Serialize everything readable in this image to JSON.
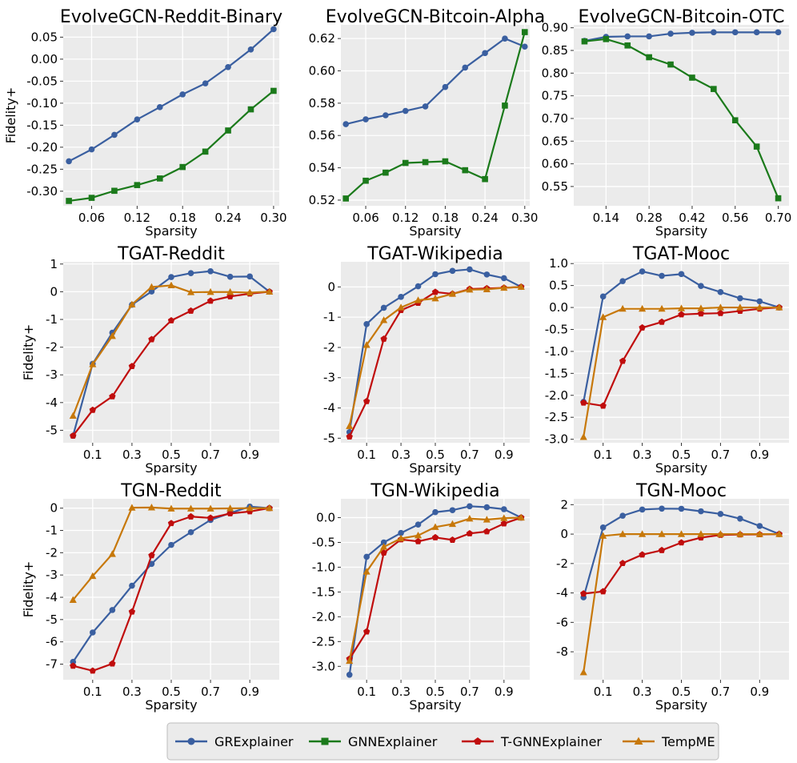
{
  "legend": [
    {
      "name": "GRExplainer",
      "color": "#3a5fa0",
      "marker": "circle"
    },
    {
      "name": "GNNExplainer",
      "color": "#1b7a1b",
      "marker": "square"
    },
    {
      "name": "T-GNNExplainer",
      "color": "#c00d0d",
      "marker": "pentagon"
    },
    {
      "name": "TempME",
      "color": "#c7780a",
      "marker": "triangle"
    }
  ],
  "ylabel": "Fidelity+",
  "xlabel": "Sparsity",
  "chart_data": [
    {
      "type": "line",
      "title": "EvolveGCN-Reddit-Binary",
      "xlabel": "Sparsity",
      "ylabel": "Fidelity+",
      "xlim": [
        0.0225,
        0.3075
      ],
      "ylim": [
        -0.333,
        0.078
      ],
      "xticks": [
        0.06,
        0.12,
        0.18,
        0.24,
        0.3
      ],
      "xtick_labels": [
        "0.06",
        "0.12",
        "0.18",
        "0.24",
        "0.30"
      ],
      "yticks": [
        -0.3,
        -0.25,
        -0.2,
        -0.15,
        -0.1,
        -0.05,
        0.0,
        0.05
      ],
      "ytick_labels": [
        "-0.30",
        "-0.25",
        "-0.20",
        "-0.15",
        "-0.10",
        "-0.05",
        "0.00",
        "0.05"
      ],
      "x": [
        0.03,
        0.06,
        0.09,
        0.12,
        0.15,
        0.18,
        0.21,
        0.24,
        0.27,
        0.3
      ],
      "series": [
        {
          "name": "GRExplainer",
          "values": [
            -0.232,
            -0.205,
            -0.172,
            -0.137,
            -0.109,
            -0.08,
            -0.055,
            -0.018,
            0.022,
            0.068
          ]
        },
        {
          "name": "GNNExplainer",
          "values": [
            -0.322,
            -0.315,
            -0.299,
            -0.286,
            -0.271,
            -0.245,
            -0.21,
            -0.162,
            -0.114,
            -0.072
          ]
        }
      ]
    },
    {
      "type": "line",
      "title": "EvolveGCN-Bitcoin-Alpha",
      "xlabel": "Sparsity",
      "ylabel": "",
      "xlim": [
        0.0225,
        0.3075
      ],
      "ylim": [
        0.5165,
        0.6285
      ],
      "xticks": [
        0.06,
        0.12,
        0.18,
        0.24,
        0.3
      ],
      "xtick_labels": [
        "0.06",
        "0.12",
        "0.18",
        "0.24",
        "0.30"
      ],
      "yticks": [
        0.52,
        0.54,
        0.56,
        0.58,
        0.6,
        0.62
      ],
      "ytick_labels": [
        "0.52",
        "0.54",
        "0.56",
        "0.58",
        "0.60",
        "0.62"
      ],
      "x": [
        0.03,
        0.06,
        0.09,
        0.12,
        0.15,
        0.18,
        0.21,
        0.24,
        0.27,
        0.3
      ],
      "series": [
        {
          "name": "GRExplainer",
          "values": [
            0.567,
            0.57,
            0.5725,
            0.5752,
            0.578,
            0.59,
            0.602,
            0.611,
            0.62,
            0.615
          ]
        },
        {
          "name": "GNNExplainer",
          "values": [
            0.521,
            0.532,
            0.537,
            0.543,
            0.5435,
            0.544,
            0.5385,
            0.533,
            0.5785,
            0.624
          ]
        }
      ]
    },
    {
      "type": "line",
      "title": "EvolveGCN-Bitcoin-OTC",
      "xlabel": "Sparsity",
      "ylabel": "",
      "xlim": [
        0.035,
        0.735
      ],
      "ylim": [
        0.5075,
        0.9065
      ],
      "xticks": [
        0.14,
        0.28,
        0.42,
        0.56,
        0.7
      ],
      "xtick_labels": [
        "0.14",
        "0.28",
        "0.42",
        "0.56",
        "0.70"
      ],
      "yticks": [
        0.55,
        0.6,
        0.65,
        0.7,
        0.75,
        0.8,
        0.85,
        0.9
      ],
      "ytick_labels": [
        "0.55",
        "0.60",
        "0.65",
        "0.70",
        "0.75",
        "0.80",
        "0.85",
        "0.90"
      ],
      "x": [
        0.07,
        0.14,
        0.21,
        0.28,
        0.35,
        0.42,
        0.49,
        0.56,
        0.63,
        0.7
      ],
      "series": [
        {
          "name": "GRExplainer",
          "values": [
            0.871,
            0.88,
            0.881,
            0.881,
            0.887,
            0.889,
            0.89,
            0.89,
            0.89,
            0.89
          ]
        },
        {
          "name": "GNNExplainer",
          "values": [
            0.87,
            0.875,
            0.861,
            0.835,
            0.819,
            0.79,
            0.765,
            0.696,
            0.638,
            0.524
          ]
        }
      ]
    },
    {
      "type": "line",
      "title": "TGAT-Reddit",
      "xlabel": "Sparsity",
      "ylabel": "Fidelity+",
      "xlim": [
        -0.05,
        1.05
      ],
      "ylim": [
        -5.45,
        1.08
      ],
      "xticks": [
        0.1,
        0.3,
        0.5,
        0.7,
        0.9
      ],
      "xtick_labels": [
        "0.1",
        "0.3",
        "0.5",
        "0.7",
        "0.9"
      ],
      "yticks": [
        -5,
        -4,
        -3,
        -2,
        -1,
        0,
        1
      ],
      "ytick_labels": [
        "-5",
        "-4",
        "-3",
        "-2",
        "-1",
        "0",
        "1"
      ],
      "x": [
        0.0,
        0.1,
        0.2,
        0.3,
        0.4,
        0.5,
        0.6,
        0.7,
        0.8,
        0.9,
        1.0
      ],
      "series": [
        {
          "name": "GRExplainer",
          "values": [
            -5.2,
            -2.6,
            -1.48,
            -0.47,
            0.01,
            0.53,
            0.67,
            0.74,
            0.54,
            0.55,
            0.0
          ]
        },
        {
          "name": "T-GNNExplainer",
          "values": [
            -5.2,
            -4.27,
            -3.78,
            -2.69,
            -1.72,
            -1.04,
            -0.69,
            -0.33,
            -0.17,
            -0.07,
            0.0
          ]
        },
        {
          "name": "TempME",
          "values": [
            -4.48,
            -2.62,
            -1.6,
            -0.46,
            0.17,
            0.23,
            -0.02,
            -0.01,
            -0.01,
            -0.03,
            0.0
          ]
        }
      ]
    },
    {
      "type": "line",
      "title": "TGAT-Wikipedia",
      "xlabel": "Sparsity",
      "ylabel": "",
      "xlim": [
        -0.05,
        1.05
      ],
      "ylim": [
        -5.15,
        0.83
      ],
      "xticks": [
        0.1,
        0.3,
        0.5,
        0.7,
        0.9
      ],
      "xtick_labels": [
        "0.1",
        "0.3",
        "0.5",
        "0.7",
        "0.9"
      ],
      "yticks": [
        -5,
        -4,
        -3,
        -2,
        -1,
        0
      ],
      "ytick_labels": [
        "-5",
        "-4",
        "-3",
        "-2",
        "-1",
        "0"
      ],
      "x": [
        0.0,
        0.1,
        0.2,
        0.3,
        0.4,
        0.5,
        0.6,
        0.7,
        0.8,
        0.9,
        1.0
      ],
      "series": [
        {
          "name": "GRExplainer",
          "values": [
            -4.8,
            -1.23,
            -0.69,
            -0.33,
            0.02,
            0.42,
            0.53,
            0.58,
            0.41,
            0.29,
            0.0
          ]
        },
        {
          "name": "T-GNNExplainer",
          "values": [
            -4.95,
            -3.78,
            -1.72,
            -0.77,
            -0.53,
            -0.17,
            -0.23,
            -0.07,
            -0.05,
            -0.03,
            0.0
          ]
        },
        {
          "name": "TempME",
          "values": [
            -4.6,
            -1.92,
            -1.1,
            -0.68,
            -0.44,
            -0.38,
            -0.23,
            -0.09,
            -0.08,
            -0.03,
            0.0
          ]
        }
      ]
    },
    {
      "type": "line",
      "title": "TGAT-Mooc",
      "xlabel": "Sparsity",
      "ylabel": "",
      "xlim": [
        -0.05,
        1.05
      ],
      "ylim": [
        -3.08,
        1.04
      ],
      "xticks": [
        0.1,
        0.3,
        0.5,
        0.7,
        0.9
      ],
      "xtick_labels": [
        "0.1",
        "0.3",
        "0.5",
        "0.7",
        "0.9"
      ],
      "yticks": [
        -3.0,
        -2.5,
        -2.0,
        -1.5,
        -1.0,
        -0.5,
        0.0,
        0.5,
        1.0
      ],
      "ytick_labels": [
        "-3.0",
        "-2.5",
        "-2.0",
        "-1.5",
        "-1.0",
        "-0.5",
        "0.0",
        "0.5",
        "1.0"
      ],
      "x": [
        0.0,
        0.1,
        0.2,
        0.3,
        0.4,
        0.5,
        0.6,
        0.7,
        0.8,
        0.9,
        1.0
      ],
      "series": [
        {
          "name": "GRExplainer",
          "values": [
            -2.15,
            0.25,
            0.6,
            0.82,
            0.72,
            0.76,
            0.49,
            0.35,
            0.21,
            0.14,
            0.0
          ]
        },
        {
          "name": "T-GNNExplainer",
          "values": [
            -2.17,
            -2.24,
            -1.22,
            -0.46,
            -0.33,
            -0.16,
            -0.14,
            -0.13,
            -0.08,
            -0.03,
            0.0
          ]
        },
        {
          "name": "TempME",
          "values": [
            -2.95,
            -0.22,
            -0.03,
            -0.03,
            -0.03,
            -0.02,
            -0.02,
            0.0,
            0.0,
            0.0,
            0.0
          ]
        }
      ]
    },
    {
      "type": "line",
      "title": "TGN-Reddit",
      "xlabel": "Sparsity",
      "ylabel": "Fidelity+",
      "xlim": [
        -0.05,
        1.05
      ],
      "ylim": [
        -7.7,
        0.42
      ],
      "xticks": [
        0.1,
        0.3,
        0.5,
        0.7,
        0.9
      ],
      "xtick_labels": [
        "0.1",
        "0.3",
        "0.5",
        "0.7",
        "0.9"
      ],
      "yticks": [
        -7,
        -6,
        -5,
        -4,
        -3,
        -2,
        -1,
        0
      ],
      "ytick_labels": [
        "-7",
        "-6",
        "-5",
        "-4",
        "-3",
        "-2",
        "-1",
        "0"
      ],
      "x": [
        0.0,
        0.1,
        0.2,
        0.3,
        0.4,
        0.5,
        0.6,
        0.7,
        0.8,
        0.9,
        1.0
      ],
      "series": [
        {
          "name": "GRExplainer",
          "values": [
            -6.9,
            -5.58,
            -4.57,
            -3.48,
            -2.5,
            -1.65,
            -1.08,
            -0.53,
            -0.22,
            0.07,
            0.0
          ]
        },
        {
          "name": "T-GNNExplainer",
          "values": [
            -7.08,
            -7.3,
            -6.98,
            -4.65,
            -2.12,
            -0.68,
            -0.38,
            -0.44,
            -0.24,
            -0.15,
            0.0
          ]
        },
        {
          "name": "TempME",
          "values": [
            -4.12,
            -3.05,
            -2.06,
            0.02,
            0.03,
            -0.02,
            -0.02,
            -0.02,
            -0.01,
            0.0,
            0.0
          ]
        }
      ]
    },
    {
      "type": "line",
      "title": "TGN-Wikipedia",
      "xlabel": "Sparsity",
      "ylabel": "",
      "xlim": [
        -0.05,
        1.05
      ],
      "ylim": [
        -3.27,
        0.38
      ],
      "xticks": [
        0.1,
        0.3,
        0.5,
        0.7,
        0.9
      ],
      "xtick_labels": [
        "0.1",
        "0.3",
        "0.5",
        "0.7",
        "0.9"
      ],
      "yticks": [
        -3.0,
        -2.5,
        -2.0,
        -1.5,
        -1.0,
        -0.5,
        0.0
      ],
      "ytick_labels": [
        "-3.0",
        "-2.5",
        "-2.0",
        "-1.5",
        "-1.0",
        "-0.5",
        "0.0"
      ],
      "x": [
        0.0,
        0.1,
        0.2,
        0.3,
        0.4,
        0.5,
        0.6,
        0.7,
        0.8,
        0.9,
        1.0
      ],
      "series": [
        {
          "name": "GRExplainer",
          "values": [
            -3.17,
            -0.79,
            -0.5,
            -0.31,
            -0.14,
            0.11,
            0.15,
            0.23,
            0.21,
            0.17,
            0.0
          ]
        },
        {
          "name": "T-GNNExplainer",
          "values": [
            -2.85,
            -2.3,
            -0.71,
            -0.44,
            -0.48,
            -0.4,
            -0.45,
            -0.32,
            -0.28,
            -0.12,
            0.0
          ]
        },
        {
          "name": "TempME",
          "values": [
            -2.89,
            -1.09,
            -0.59,
            -0.42,
            -0.36,
            -0.19,
            -0.13,
            -0.02,
            -0.04,
            -0.01,
            0.0
          ]
        }
      ]
    },
    {
      "type": "line",
      "title": "TGN-Mooc",
      "xlabel": "Sparsity",
      "ylabel": "",
      "xlim": [
        -0.05,
        1.05
      ],
      "ylim": [
        -9.9,
        2.4
      ],
      "xticks": [
        0.1,
        0.3,
        0.5,
        0.7,
        0.9
      ],
      "xtick_labels": [
        "0.1",
        "0.3",
        "0.5",
        "0.7",
        "0.9"
      ],
      "yticks": [
        -8,
        -6,
        -4,
        -2,
        0,
        2
      ],
      "ytick_labels": [
        "-8",
        "-6",
        "-4",
        "-2",
        "0",
        "2"
      ],
      "x": [
        0.0,
        0.1,
        0.2,
        0.3,
        0.4,
        0.5,
        0.6,
        0.7,
        0.8,
        0.9,
        1.0
      ],
      "series": [
        {
          "name": "GRExplainer",
          "values": [
            -4.3,
            0.45,
            1.25,
            1.67,
            1.73,
            1.72,
            1.55,
            1.37,
            1.05,
            0.55,
            0.0
          ]
        },
        {
          "name": "T-GNNExplainer",
          "values": [
            -4.05,
            -3.9,
            -1.98,
            -1.4,
            -1.1,
            -0.58,
            -0.24,
            -0.06,
            -0.03,
            -0.02,
            0.0
          ]
        },
        {
          "name": "TempME",
          "values": [
            -9.4,
            -0.12,
            0.0,
            0.0,
            0.0,
            0.0,
            0.0,
            0.0,
            0.0,
            0.0,
            0.0
          ]
        }
      ]
    }
  ]
}
